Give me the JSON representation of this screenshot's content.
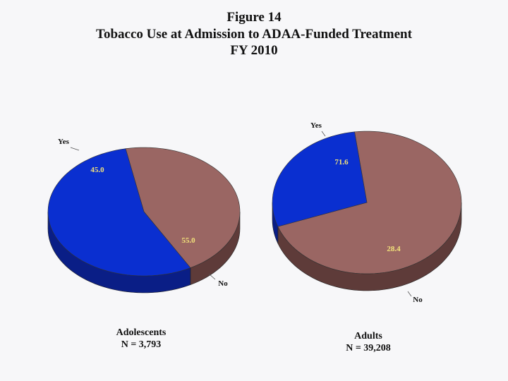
{
  "title": {
    "line1": "Figure 14",
    "line2": "Tobacco Use at Admission to ADAA-Funded Treatment",
    "line3": "FY 2010"
  },
  "colors": {
    "yes": "#9a6663",
    "yes_side": "#5e3b39",
    "no": "#0a2fd0",
    "no_side": "#0a1e86",
    "background": "#f7f7f9"
  },
  "chart_data": [
    {
      "type": "pie",
      "title": "",
      "categories": [
        "Yes",
        "No"
      ],
      "values": [
        45.0,
        55.0
      ],
      "value_labels": [
        "45.0",
        "55.0"
      ],
      "caption": {
        "group": "Adolescents",
        "n": "N = 3,793"
      }
    },
    {
      "type": "pie",
      "title": "",
      "categories": [
        "Yes",
        "No"
      ],
      "values": [
        71.6,
        28.4
      ],
      "value_labels": [
        "71.6",
        "28.4"
      ],
      "caption": {
        "group": "Adults",
        "n": "N = 39,208"
      }
    }
  ]
}
